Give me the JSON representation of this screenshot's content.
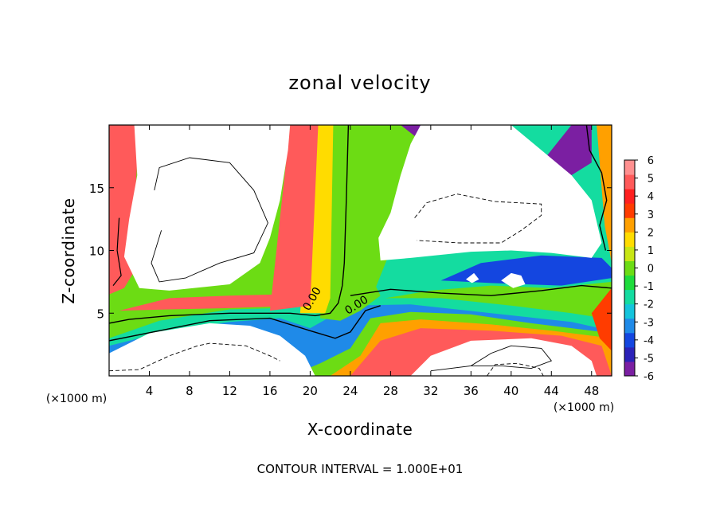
{
  "chart_data": {
    "type": "heatmap",
    "title": "zonal velocity",
    "xlabel": "X-coordinate",
    "ylabel": "Z-coordinate",
    "x_unit_label": "(×1000 m)",
    "x_unit_label_right": "(×1000 m)",
    "xlim": [
      0,
      50
    ],
    "ylim": [
      0,
      20
    ],
    "xticks": [
      4,
      8,
      12,
      16,
      20,
      24,
      28,
      32,
      36,
      40,
      44,
      48
    ],
    "yticks": [
      5,
      10,
      15
    ],
    "colorbar": {
      "min": -6,
      "max": 6,
      "ticks": [
        6,
        5,
        4,
        3,
        2,
        1,
        0,
        -1,
        -2,
        -3,
        -4,
        -5,
        -6
      ],
      "colors": [
        "#7b1fa2",
        "#2b22b8",
        "#1446e0",
        "#1f8ae8",
        "#14c4dc",
        "#14dca0",
        "#1edc3c",
        "#6cdc14",
        "#c8e614",
        "#ffdc00",
        "#ffa000",
        "#ff3c00",
        "#ff2020",
        "#ff5a5a",
        "#ff9090"
      ]
    },
    "contour_labels": [
      "0.00",
      "0.00"
    ],
    "grid": false,
    "footer": "CONTOUR INTERVAL = 1.000E+01"
  }
}
